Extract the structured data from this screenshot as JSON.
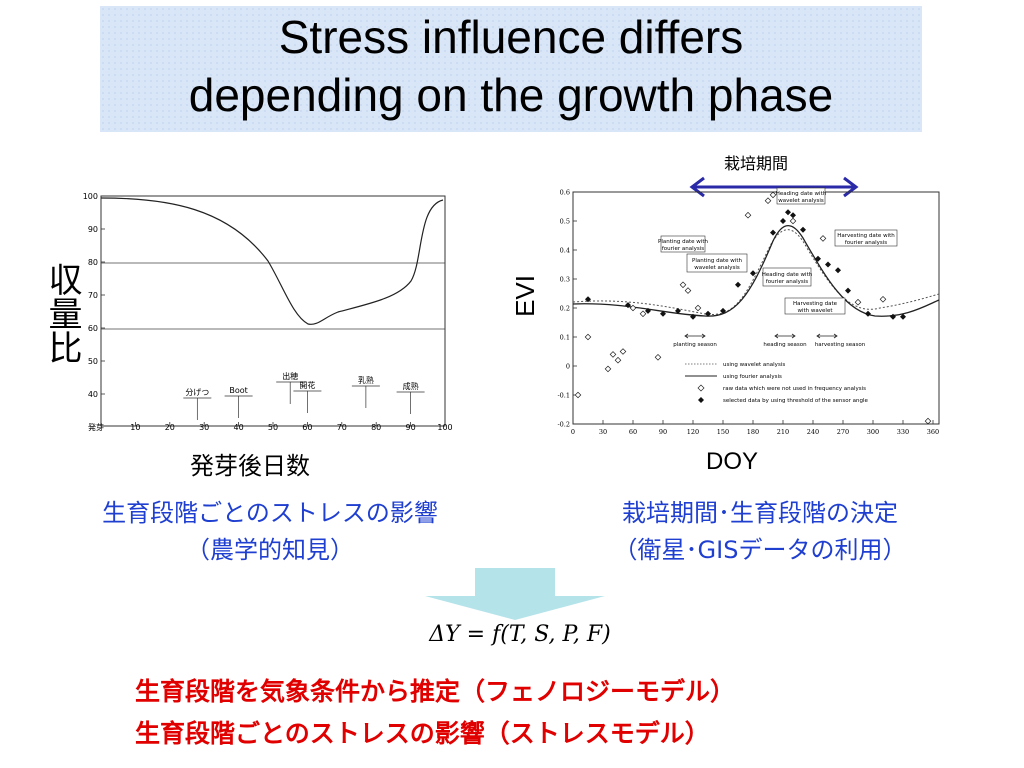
{
  "title": {
    "line1": "Stress influence differs",
    "line2": "depending on the growth phase"
  },
  "left_chart": {
    "ylabel": "収量比",
    "xlabel": "発芽後日数",
    "yticks": [
      "100",
      "90",
      "80",
      "70",
      "60",
      "50",
      "40"
    ],
    "xticks": [
      "発芽",
      "10",
      "20",
      "30",
      "40",
      "50",
      "60",
      "70",
      "80",
      "90",
      "100"
    ],
    "stages": [
      {
        "label": "分げつ",
        "day": 28
      },
      {
        "label": "Boot",
        "day": 40
      },
      {
        "label": "出穂",
        "day": 55
      },
      {
        "label": "開花",
        "day": 60
      },
      {
        "label": "乳熟",
        "day": 77
      },
      {
        "label": "成熟",
        "day": 90
      }
    ],
    "caption1": "生育段階ごとのストレスの影響",
    "caption2": "（農学的知見）"
  },
  "right_chart": {
    "period_label": "栽培期間",
    "ylabel": "EVI",
    "xlabel": "DOY",
    "yticks": [
      "0.6",
      "0.5",
      "0.4",
      "0.3",
      "0.2",
      "0.1",
      "0",
      "-0.1",
      "-0.2"
    ],
    "xticks": [
      "0",
      "30",
      "60",
      "90",
      "120",
      "150",
      "180",
      "210",
      "240",
      "270",
      "300",
      "330",
      "360"
    ],
    "boxes": {
      "planting_fourier": [
        "Planting date with",
        "fourier analysis"
      ],
      "planting_wavelet": [
        "Planting date with",
        "wavelet analysis"
      ],
      "heading_wavelet": [
        "Heading date with",
        "wavelet analysis"
      ],
      "heading_fourier": [
        "Heading date with",
        "fourier analysis"
      ],
      "harvesting_fourier": [
        "Harvesting date with",
        "fourier analysis"
      ],
      "harvesting_wavelet": [
        "Harvesting date",
        "with wavelet"
      ]
    },
    "seasons": [
      "planting season",
      "heading season",
      "harvesting season"
    ],
    "legend": [
      "using wavelet analysis",
      "using fourier analysis",
      "raw data which were not used in frequency analysis",
      "selected data by using threshold of the sensor angle"
    ],
    "caption1": "栽培期間･生育段階の決定",
    "caption2": "（衛星･GISデータの利用）"
  },
  "formula": "ΔY = f(T, S, P, F)",
  "bottom": {
    "line1": "生育段階を気象条件から推定（フェノロジーモデル）",
    "line2": "生育段階ごとのストレスの影響（ストレスモデル）"
  },
  "colors": {
    "caption_blue": "#1f3fd0",
    "bottom_red": "#e00000",
    "arrow": "#b5e3ea",
    "period_arrow": "#2a2aa8",
    "title_bg": "#d9e6f7"
  }
}
